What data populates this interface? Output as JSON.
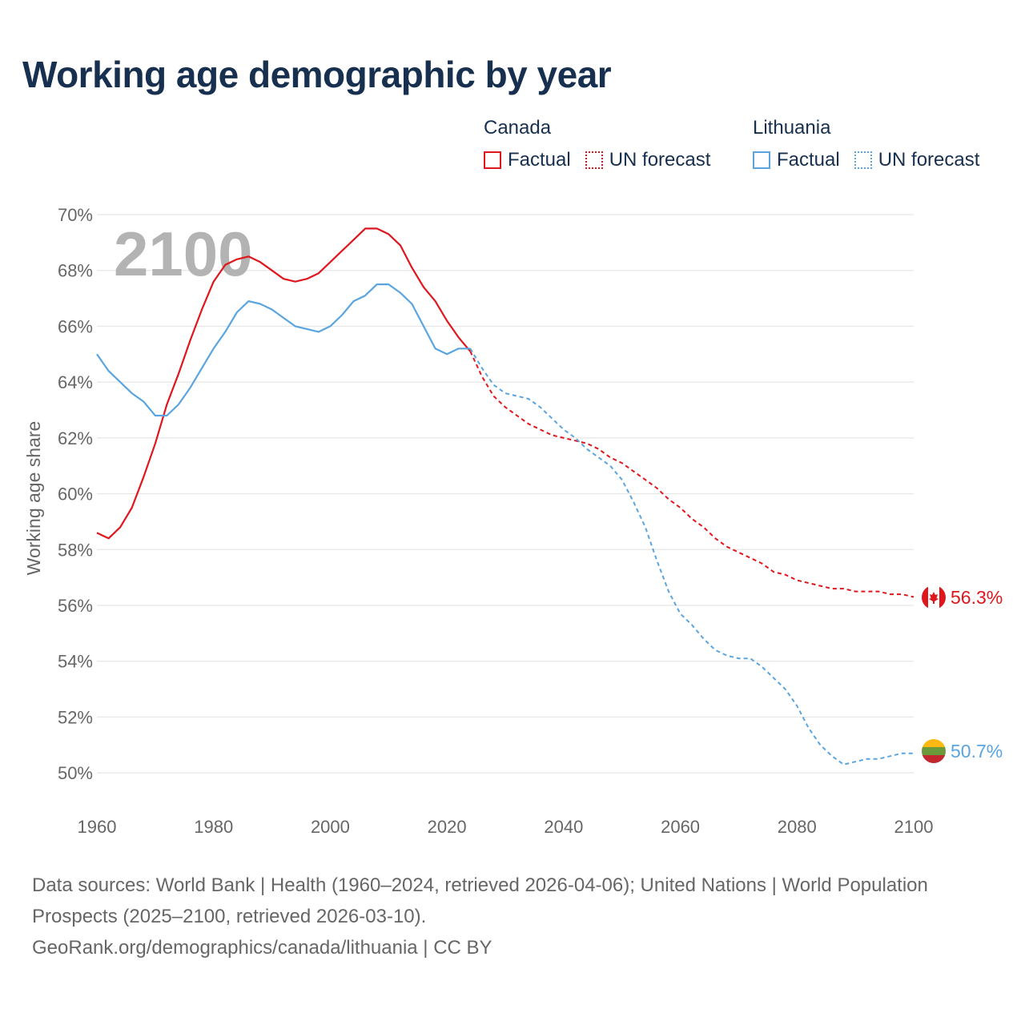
{
  "title": "Working age demographic by year",
  "legend": {
    "groups": [
      {
        "name": "Canada",
        "factual_label": "Factual",
        "forecast_label": "UN forecast",
        "color": "#e0161d"
      },
      {
        "name": "Lithuania",
        "factual_label": "Factual",
        "forecast_label": "UN forecast",
        "color": "#5aa5e0"
      }
    ]
  },
  "chart_data": {
    "type": "line",
    "title": "Working age demographic by year",
    "ylabel": "Working age share",
    "xlabel": "",
    "year_overlay": "2100",
    "xlim": [
      1960,
      2100
    ],
    "ylim": [
      49,
      70
    ],
    "x_ticks": [
      "1960",
      "1980",
      "2000",
      "2020",
      "2040",
      "2060",
      "2080",
      "2100"
    ],
    "y_ticks": [
      "50%",
      "52%",
      "54%",
      "56%",
      "58%",
      "60%",
      "62%",
      "64%",
      "66%",
      "68%",
      "70%"
    ],
    "grid": true,
    "series": [
      {
        "name": "Canada",
        "color": "#e0161d",
        "end_label": "56.3%",
        "factual_range": [
          1960,
          2024
        ],
        "forecast_range": [
          2024,
          2100
        ],
        "points": [
          [
            1960,
            58.6
          ],
          [
            1962,
            58.4
          ],
          [
            1964,
            58.8
          ],
          [
            1966,
            59.5
          ],
          [
            1968,
            60.6
          ],
          [
            1970,
            61.8
          ],
          [
            1972,
            63.2
          ],
          [
            1974,
            64.3
          ],
          [
            1976,
            65.5
          ],
          [
            1978,
            66.6
          ],
          [
            1980,
            67.6
          ],
          [
            1982,
            68.2
          ],
          [
            1984,
            68.4
          ],
          [
            1986,
            68.5
          ],
          [
            1988,
            68.3
          ],
          [
            1990,
            68.0
          ],
          [
            1992,
            67.7
          ],
          [
            1994,
            67.6
          ],
          [
            1996,
            67.7
          ],
          [
            1998,
            67.9
          ],
          [
            2000,
            68.3
          ],
          [
            2002,
            68.7
          ],
          [
            2004,
            69.1
          ],
          [
            2006,
            69.5
          ],
          [
            2008,
            69.5
          ],
          [
            2010,
            69.3
          ],
          [
            2012,
            68.9
          ],
          [
            2014,
            68.1
          ],
          [
            2016,
            67.4
          ],
          [
            2018,
            66.9
          ],
          [
            2020,
            66.2
          ],
          [
            2022,
            65.6
          ],
          [
            2024,
            65.1
          ],
          [
            2026,
            64.2
          ],
          [
            2028,
            63.5
          ],
          [
            2030,
            63.1
          ],
          [
            2032,
            62.8
          ],
          [
            2034,
            62.5
          ],
          [
            2036,
            62.3
          ],
          [
            2038,
            62.1
          ],
          [
            2040,
            62.0
          ],
          [
            2042,
            61.9
          ],
          [
            2044,
            61.8
          ],
          [
            2046,
            61.6
          ],
          [
            2048,
            61.3
          ],
          [
            2050,
            61.1
          ],
          [
            2052,
            60.8
          ],
          [
            2054,
            60.5
          ],
          [
            2056,
            60.2
          ],
          [
            2058,
            59.8
          ],
          [
            2060,
            59.5
          ],
          [
            2062,
            59.1
          ],
          [
            2064,
            58.8
          ],
          [
            2066,
            58.4
          ],
          [
            2068,
            58.1
          ],
          [
            2070,
            57.9
          ],
          [
            2072,
            57.7
          ],
          [
            2074,
            57.5
          ],
          [
            2076,
            57.2
          ],
          [
            2078,
            57.1
          ],
          [
            2080,
            56.9
          ],
          [
            2082,
            56.8
          ],
          [
            2084,
            56.7
          ],
          [
            2086,
            56.6
          ],
          [
            2088,
            56.6
          ],
          [
            2090,
            56.5
          ],
          [
            2092,
            56.5
          ],
          [
            2094,
            56.5
          ],
          [
            2096,
            56.4
          ],
          [
            2098,
            56.4
          ],
          [
            2100,
            56.3
          ]
        ]
      },
      {
        "name": "Lithuania",
        "color": "#5aa5e0",
        "end_label": "50.7%",
        "factual_range": [
          1960,
          2024
        ],
        "forecast_range": [
          2024,
          2100
        ],
        "points": [
          [
            1960,
            65.0
          ],
          [
            1962,
            64.4
          ],
          [
            1964,
            64.0
          ],
          [
            1966,
            63.6
          ],
          [
            1968,
            63.3
          ],
          [
            1970,
            62.8
          ],
          [
            1972,
            62.8
          ],
          [
            1974,
            63.2
          ],
          [
            1976,
            63.8
          ],
          [
            1978,
            64.5
          ],
          [
            1980,
            65.2
          ],
          [
            1982,
            65.8
          ],
          [
            1984,
            66.5
          ],
          [
            1986,
            66.9
          ],
          [
            1988,
            66.8
          ],
          [
            1990,
            66.6
          ],
          [
            1992,
            66.3
          ],
          [
            1994,
            66.0
          ],
          [
            1996,
            65.9
          ],
          [
            1998,
            65.8
          ],
          [
            2000,
            66.0
          ],
          [
            2002,
            66.4
          ],
          [
            2004,
            66.9
          ],
          [
            2006,
            67.1
          ],
          [
            2008,
            67.5
          ],
          [
            2010,
            67.5
          ],
          [
            2012,
            67.2
          ],
          [
            2014,
            66.8
          ],
          [
            2016,
            66.0
          ],
          [
            2018,
            65.2
          ],
          [
            2020,
            65.0
          ],
          [
            2022,
            65.2
          ],
          [
            2024,
            65.2
          ],
          [
            2026,
            64.5
          ],
          [
            2028,
            63.9
          ],
          [
            2030,
            63.6
          ],
          [
            2032,
            63.5
          ],
          [
            2034,
            63.4
          ],
          [
            2036,
            63.1
          ],
          [
            2038,
            62.7
          ],
          [
            2040,
            62.3
          ],
          [
            2042,
            62.0
          ],
          [
            2044,
            61.6
          ],
          [
            2046,
            61.3
          ],
          [
            2048,
            61.0
          ],
          [
            2050,
            60.5
          ],
          [
            2052,
            59.7
          ],
          [
            2054,
            58.8
          ],
          [
            2056,
            57.6
          ],
          [
            2058,
            56.5
          ],
          [
            2060,
            55.7
          ],
          [
            2062,
            55.3
          ],
          [
            2064,
            54.8
          ],
          [
            2066,
            54.4
          ],
          [
            2068,
            54.2
          ],
          [
            2070,
            54.1
          ],
          [
            2072,
            54.1
          ],
          [
            2074,
            53.8
          ],
          [
            2076,
            53.4
          ],
          [
            2078,
            53.0
          ],
          [
            2080,
            52.4
          ],
          [
            2082,
            51.6
          ],
          [
            2084,
            51.0
          ],
          [
            2086,
            50.6
          ],
          [
            2088,
            50.3
          ],
          [
            2090,
            50.4
          ],
          [
            2092,
            50.5
          ],
          [
            2094,
            50.5
          ],
          [
            2096,
            50.6
          ],
          [
            2098,
            50.7
          ],
          [
            2100,
            50.7
          ]
        ]
      }
    ]
  },
  "footer": {
    "line1": "Data sources: World Bank | Health (1960–2024, retrieved 2026-04-06); United Nations | World Population Prospects (2025–2100, retrieved 2026-03-10).",
    "line2": "GeoRank.org/demographics/canada/lithuania | CC BY"
  }
}
